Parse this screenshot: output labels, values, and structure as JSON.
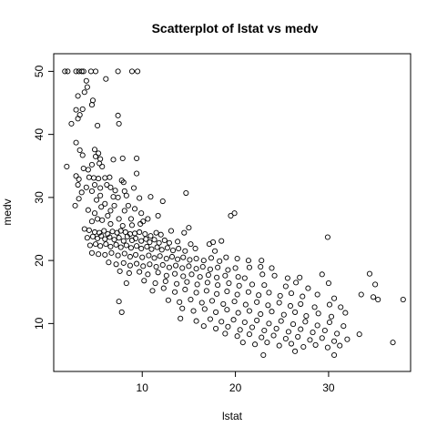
{
  "chart_data": {
    "type": "scatter",
    "title": "Scatterplot of lstat vs medv",
    "xlabel": "lstat",
    "ylabel": "medv",
    "xlim": [
      0.5,
      38.8
    ],
    "ylim": [
      2.4,
      52.8
    ],
    "xticks": [
      10,
      20,
      30
    ],
    "yticks": [
      10,
      20,
      30,
      40,
      50
    ],
    "grid": false,
    "marker": "open-circle",
    "point_color": "#000000",
    "points": [
      [
        1.7,
        50
      ],
      [
        2.0,
        50
      ],
      [
        2.9,
        50
      ],
      [
        3.2,
        50
      ],
      [
        3.5,
        50
      ],
      [
        3.7,
        50
      ],
      [
        4.5,
        50
      ],
      [
        5.0,
        50
      ],
      [
        7.4,
        50
      ],
      [
        8.9,
        50
      ],
      [
        9.5,
        50
      ],
      [
        4.0,
        48.5
      ],
      [
        6.1,
        48.8
      ],
      [
        4.1,
        47.5
      ],
      [
        3.8,
        46.7
      ],
      [
        4.7,
        45.4
      ],
      [
        3.1,
        46.1
      ],
      [
        4.6,
        44.7
      ],
      [
        2.9,
        43.9
      ],
      [
        3.3,
        43.1
      ],
      [
        3.6,
        44.0
      ],
      [
        7.4,
        43.0
      ],
      [
        3.1,
        42.5
      ],
      [
        2.4,
        41.7
      ],
      [
        5.2,
        41.4
      ],
      [
        7.5,
        41.7
      ],
      [
        2.9,
        38.7
      ],
      [
        4.9,
        37.6
      ],
      [
        5.3,
        37.0
      ],
      [
        3.3,
        37.5
      ],
      [
        5.0,
        36.5
      ],
      [
        5.5,
        36.1
      ],
      [
        5.4,
        35.4
      ],
      [
        6.9,
        36.0
      ],
      [
        7.9,
        36.2
      ],
      [
        9.4,
        36.2
      ],
      [
        3.6,
        36.7
      ],
      [
        1.9,
        34.9
      ],
      [
        3.7,
        34.6
      ],
      [
        4.6,
        35.2
      ],
      [
        4.2,
        34.4
      ],
      [
        5.7,
        34.9
      ],
      [
        6.5,
        33.2
      ],
      [
        2.9,
        33.4
      ],
      [
        3.2,
        32.9
      ],
      [
        4.3,
        33.2
      ],
      [
        4.8,
        33.1
      ],
      [
        5.3,
        33.0
      ],
      [
        6.0,
        33.1
      ],
      [
        8.0,
        32.4
      ],
      [
        6.2,
        32.0
      ],
      [
        7.8,
        32.7
      ],
      [
        9.4,
        33.8
      ],
      [
        3.1,
        32.0
      ],
      [
        4.0,
        31.6
      ],
      [
        4.9,
        32.0
      ],
      [
        5.5,
        31.5
      ],
      [
        6.6,
        31.6
      ],
      [
        7.1,
        31.1
      ],
      [
        8.1,
        31.0
      ],
      [
        9.1,
        31.5
      ],
      [
        3.5,
        30.8
      ],
      [
        4.6,
        31.0
      ],
      [
        5.5,
        30.3
      ],
      [
        6.9,
        30.1
      ],
      [
        7.4,
        30.0
      ],
      [
        8.3,
        30.3
      ],
      [
        9.7,
        29.9
      ],
      [
        10.9,
        30.1
      ],
      [
        14.7,
        30.7
      ],
      [
        12.2,
        29.4
      ],
      [
        3.2,
        29.8
      ],
      [
        5.1,
        29.6
      ],
      [
        6.0,
        29.0
      ],
      [
        7.0,
        28.7
      ],
      [
        8.5,
        28.7
      ],
      [
        9.2,
        28.2
      ],
      [
        2.8,
        28.7
      ],
      [
        4.2,
        28.0
      ],
      [
        5.6,
        28.5
      ],
      [
        6.6,
        27.9
      ],
      [
        8.1,
        27.9
      ],
      [
        9.9,
        27.5
      ],
      [
        11.7,
        27.1
      ],
      [
        4.9,
        27.5
      ],
      [
        5.2,
        26.6
      ],
      [
        6.3,
        27.1
      ],
      [
        7.5,
        26.6
      ],
      [
        8.8,
        26.6
      ],
      [
        10.6,
        26.6
      ],
      [
        4.6,
        26.2
      ],
      [
        5.7,
        26.4
      ],
      [
        6.6,
        25.8
      ],
      [
        7.9,
        25.5
      ],
      [
        8.9,
        25.6
      ],
      [
        9.8,
        25.8
      ],
      [
        10.1,
        26.2
      ],
      [
        19.5,
        27.1
      ],
      [
        19.9,
        27.5
      ],
      [
        3.8,
        25.0
      ],
      [
        4.3,
        24.8
      ],
      [
        4.9,
        24.5
      ],
      [
        5.4,
        24.4
      ],
      [
        5.9,
        24.7
      ],
      [
        6.3,
        24.2
      ],
      [
        6.8,
        24.6
      ],
      [
        7.3,
        24.4
      ],
      [
        7.7,
        24.7
      ],
      [
        8.2,
        24.5
      ],
      [
        8.7,
        24.2
      ],
      [
        9.2,
        24.3
      ],
      [
        9.7,
        24.5
      ],
      [
        10.3,
        24.2
      ],
      [
        10.9,
        23.9
      ],
      [
        11.5,
        24.4
      ],
      [
        12.0,
        24.1
      ],
      [
        13.1,
        24.7
      ],
      [
        14.5,
        24.4
      ],
      [
        15.0,
        25.2
      ],
      [
        4.1,
        23.6
      ],
      [
        4.7,
        23.8
      ],
      [
        5.2,
        23.5
      ],
      [
        5.6,
        23.9
      ],
      [
        6.0,
        23.4
      ],
      [
        6.5,
        23.7
      ],
      [
        7.0,
        23.3
      ],
      [
        7.5,
        23.6
      ],
      [
        8.0,
        23.1
      ],
      [
        8.4,
        23.8
      ],
      [
        8.9,
        23.2
      ],
      [
        9.3,
        23.5
      ],
      [
        9.9,
        23.1
      ],
      [
        10.4,
        23.4
      ],
      [
        10.8,
        22.9
      ],
      [
        11.3,
        23.3
      ],
      [
        11.8,
        22.8
      ],
      [
        12.4,
        23.2
      ],
      [
        12.9,
        22.8
      ],
      [
        13.8,
        23.0
      ],
      [
        15.2,
        22.6
      ],
      [
        4.4,
        22.4
      ],
      [
        5.0,
        22.6
      ],
      [
        5.5,
        22.3
      ],
      [
        6.1,
        22.6
      ],
      [
        6.6,
        22.2
      ],
      [
        7.2,
        22.5
      ],
      [
        7.7,
        22.1
      ],
      [
        8.3,
        22.4
      ],
      [
        8.8,
        22.0
      ],
      [
        9.4,
        22.3
      ],
      [
        9.9,
        21.9
      ],
      [
        10.5,
        22.2
      ],
      [
        11.0,
        21.8
      ],
      [
        11.6,
        22.1
      ],
      [
        12.1,
        21.7
      ],
      [
        12.7,
        22.0
      ],
      [
        13.3,
        21.6
      ],
      [
        13.9,
        21.9
      ],
      [
        14.6,
        21.5
      ],
      [
        15.7,
        21.9
      ],
      [
        17.2,
        22.6
      ],
      [
        17.8,
        21.5
      ],
      [
        17.6,
        22.9
      ],
      [
        18.5,
        23.1
      ],
      [
        4.6,
        21.2
      ],
      [
        5.3,
        21.0
      ],
      [
        6.0,
        20.9
      ],
      [
        6.7,
        21.2
      ],
      [
        7.4,
        20.8
      ],
      [
        8.1,
        21.1
      ],
      [
        8.7,
        20.6
      ],
      [
        9.3,
        20.9
      ],
      [
        10.0,
        20.5
      ],
      [
        10.7,
        20.8
      ],
      [
        11.3,
        20.4
      ],
      [
        11.9,
        20.7
      ],
      [
        12.6,
        20.3
      ],
      [
        13.2,
        20.6
      ],
      [
        13.8,
        20.2
      ],
      [
        14.4,
        20.5
      ],
      [
        15.1,
        20.1
      ],
      [
        15.8,
        20.3
      ],
      [
        16.6,
        20.0
      ],
      [
        17.4,
        20.4
      ],
      [
        18.3,
        19.9
      ],
      [
        19.0,
        20.5
      ],
      [
        20.2,
        20.3
      ],
      [
        21.4,
        20.0
      ],
      [
        22.8,
        20.0
      ],
      [
        6.4,
        19.7
      ],
      [
        7.2,
        19.4
      ],
      [
        8.0,
        19.6
      ],
      [
        8.7,
        19.2
      ],
      [
        9.4,
        19.5
      ],
      [
        10.1,
        19.1
      ],
      [
        10.8,
        19.4
      ],
      [
        11.5,
        19.0
      ],
      [
        12.2,
        19.3
      ],
      [
        12.9,
        18.9
      ],
      [
        13.6,
        19.2
      ],
      [
        14.3,
        18.8
      ],
      [
        15.0,
        19.1
      ],
      [
        15.8,
        18.7
      ],
      [
        16.5,
        19.0
      ],
      [
        17.3,
        18.6
      ],
      [
        18.1,
        18.9
      ],
      [
        19.2,
        18.5
      ],
      [
        20.0,
        18.8
      ],
      [
        21.5,
        18.9
      ],
      [
        22.7,
        19.0
      ],
      [
        23.9,
        18.8
      ],
      [
        7.6,
        18.3
      ],
      [
        8.6,
        18.0
      ],
      [
        9.7,
        18.2
      ],
      [
        10.6,
        17.8
      ],
      [
        11.7,
        18.1
      ],
      [
        12.6,
        17.6
      ],
      [
        13.5,
        17.9
      ],
      [
        14.4,
        17.5
      ],
      [
        15.3,
        17.8
      ],
      [
        16.2,
        17.4
      ],
      [
        17.1,
        17.7
      ],
      [
        18.0,
        17.3
      ],
      [
        18.9,
        17.6
      ],
      [
        20.3,
        17.4
      ],
      [
        21.0,
        17.2
      ],
      [
        22.9,
        17.8
      ],
      [
        24.2,
        17.6
      ],
      [
        25.6,
        17.2
      ],
      [
        26.9,
        17.3
      ],
      [
        29.3,
        17.8
      ],
      [
        34.4,
        17.9
      ],
      [
        10.2,
        16.8
      ],
      [
        11.4,
        16.4
      ],
      [
        12.5,
        16.7
      ],
      [
        13.7,
        16.3
      ],
      [
        14.8,
        16.6
      ],
      [
        15.9,
        16.2
      ],
      [
        17.0,
        16.5
      ],
      [
        18.1,
        16.1
      ],
      [
        19.3,
        16.4
      ],
      [
        20.4,
        16.0
      ],
      [
        21.8,
        16.2
      ],
      [
        23.1,
        16.1
      ],
      [
        25.4,
        15.9
      ],
      [
        26.5,
        16.5
      ],
      [
        27.8,
        15.6
      ],
      [
        30.0,
        16.4
      ],
      [
        8.3,
        16.4
      ],
      [
        35.0,
        16.2
      ],
      [
        11.1,
        15.2
      ],
      [
        12.3,
        15.6
      ],
      [
        13.5,
        15.0
      ],
      [
        14.6,
        15.4
      ],
      [
        15.8,
        14.9
      ],
      [
        16.9,
        15.2
      ],
      [
        18.0,
        14.7
      ],
      [
        19.1,
        15.1
      ],
      [
        20.2,
        14.6
      ],
      [
        21.4,
        15.0
      ],
      [
        22.5,
        14.5
      ],
      [
        23.6,
        14.9
      ],
      [
        24.8,
        14.4
      ],
      [
        26.0,
        14.8
      ],
      [
        27.2,
        14.3
      ],
      [
        28.8,
        14.6
      ],
      [
        30.6,
        14.0
      ],
      [
        33.5,
        14.6
      ],
      [
        34.8,
        14.2
      ],
      [
        35.3,
        13.8
      ],
      [
        12.8,
        13.7
      ],
      [
        14.0,
        13.4
      ],
      [
        15.2,
        13.8
      ],
      [
        16.4,
        13.3
      ],
      [
        17.5,
        13.6
      ],
      [
        18.7,
        13.1
      ],
      [
        19.9,
        13.5
      ],
      [
        21.1,
        13.0
      ],
      [
        22.3,
        13.4
      ],
      [
        23.5,
        12.9
      ],
      [
        24.7,
        13.3
      ],
      [
        25.9,
        12.8
      ],
      [
        27.0,
        13.1
      ],
      [
        28.5,
        12.6
      ],
      [
        30.1,
        13.0
      ],
      [
        31.3,
        12.6
      ],
      [
        7.5,
        13.5
      ],
      [
        38.0,
        13.8
      ],
      [
        14.3,
        12.4
      ],
      [
        15.5,
        12.0
      ],
      [
        16.7,
        12.3
      ],
      [
        17.9,
        11.8
      ],
      [
        19.1,
        12.2
      ],
      [
        20.3,
        11.7
      ],
      [
        21.5,
        12.0
      ],
      [
        22.7,
        11.5
      ],
      [
        23.9,
        11.9
      ],
      [
        25.2,
        11.4
      ],
      [
        26.4,
        11.8
      ],
      [
        27.6,
        11.2
      ],
      [
        28.9,
        11.6
      ],
      [
        30.3,
        11.1
      ],
      [
        31.8,
        11.7
      ],
      [
        7.8,
        11.8
      ],
      [
        14.1,
        10.8
      ],
      [
        15.8,
        10.4
      ],
      [
        17.3,
        10.7
      ],
      [
        18.5,
        10.3
      ],
      [
        19.8,
        10.6
      ],
      [
        21.0,
        10.2
      ],
      [
        22.3,
        10.5
      ],
      [
        23.6,
        10.0
      ],
      [
        24.9,
        10.4
      ],
      [
        26.2,
        9.9
      ],
      [
        27.5,
        10.3
      ],
      [
        28.8,
        9.7
      ],
      [
        30.1,
        10.2
      ],
      [
        31.6,
        9.6
      ],
      [
        16.6,
        9.6
      ],
      [
        17.9,
        9.2
      ],
      [
        19.2,
        9.5
      ],
      [
        20.5,
        9.0
      ],
      [
        21.8,
        9.4
      ],
      [
        23.1,
        8.9
      ],
      [
        24.4,
        9.2
      ],
      [
        25.7,
        8.7
      ],
      [
        27.0,
        9.1
      ],
      [
        28.3,
        8.6
      ],
      [
        29.6,
        8.9
      ],
      [
        30.9,
        8.4
      ],
      [
        18.9,
        8.4
      ],
      [
        20.2,
        8.0
      ],
      [
        21.5,
        8.3
      ],
      [
        22.8,
        7.8
      ],
      [
        24.1,
        8.1
      ],
      [
        25.4,
        7.6
      ],
      [
        26.7,
        7.9
      ],
      [
        28.0,
        7.4
      ],
      [
        29.3,
        7.7
      ],
      [
        30.6,
        7.2
      ],
      [
        32.0,
        7.5
      ],
      [
        33.3,
        8.3
      ],
      [
        20.8,
        7.0
      ],
      [
        22.1,
        6.7
      ],
      [
        23.4,
        7.0
      ],
      [
        24.7,
        6.5
      ],
      [
        26.0,
        6.8
      ],
      [
        27.3,
        6.3
      ],
      [
        28.6,
        6.6
      ],
      [
        29.9,
        6.2
      ],
      [
        31.2,
        6.5
      ],
      [
        23.0,
        5.0
      ],
      [
        26.4,
        5.6
      ],
      [
        30.6,
        5.0
      ],
      [
        36.9,
        7.0
      ],
      [
        29.9,
        23.7
      ]
    ]
  }
}
